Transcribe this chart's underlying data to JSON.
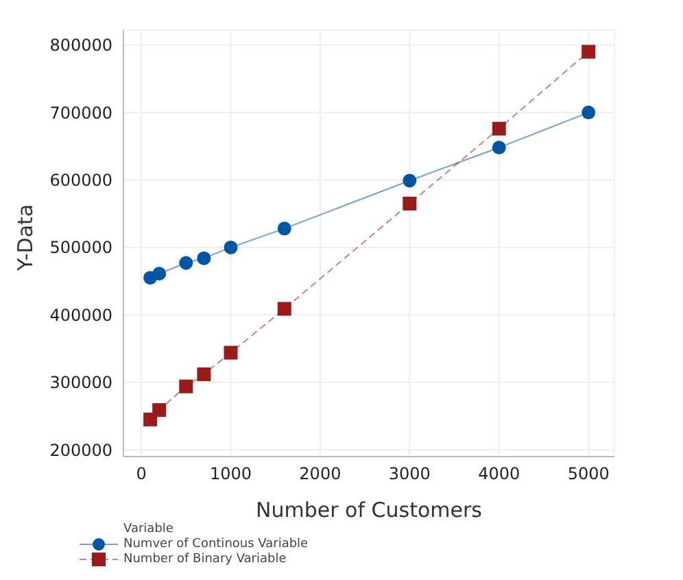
{
  "chart_data": {
    "type": "line",
    "xlabel": "Number of Customers",
    "ylabel": "Y-Data",
    "legend_title": "Variable",
    "x": [
      100,
      200,
      500,
      700,
      1000,
      1600,
      3000,
      4000,
      5000
    ],
    "series": [
      {
        "name": "Numver of Continous Variable",
        "color": "#0055a5",
        "values": [
          455000,
          461000,
          477000,
          484000,
          500000,
          528000,
          599000,
          648000,
          700000
        ],
        "marker": "circle",
        "line_style": "solid"
      },
      {
        "name": "Number of Binary Variable",
        "color": "#9b1b1b",
        "values": [
          245000,
          259000,
          294000,
          312000,
          344000,
          409000,
          565000,
          676000,
          790000
        ],
        "marker": "square",
        "line_style": "dashed"
      }
    ],
    "xlim": [
      -200,
      5290
    ],
    "xticks": [
      0,
      1000,
      2000,
      3000,
      4000,
      5000
    ],
    "ylim": [
      190000,
      822000
    ],
    "yticks": [
      200000,
      300000,
      400000,
      500000,
      600000,
      700000,
      800000
    ],
    "grid": true,
    "legend": "bottom left"
  }
}
